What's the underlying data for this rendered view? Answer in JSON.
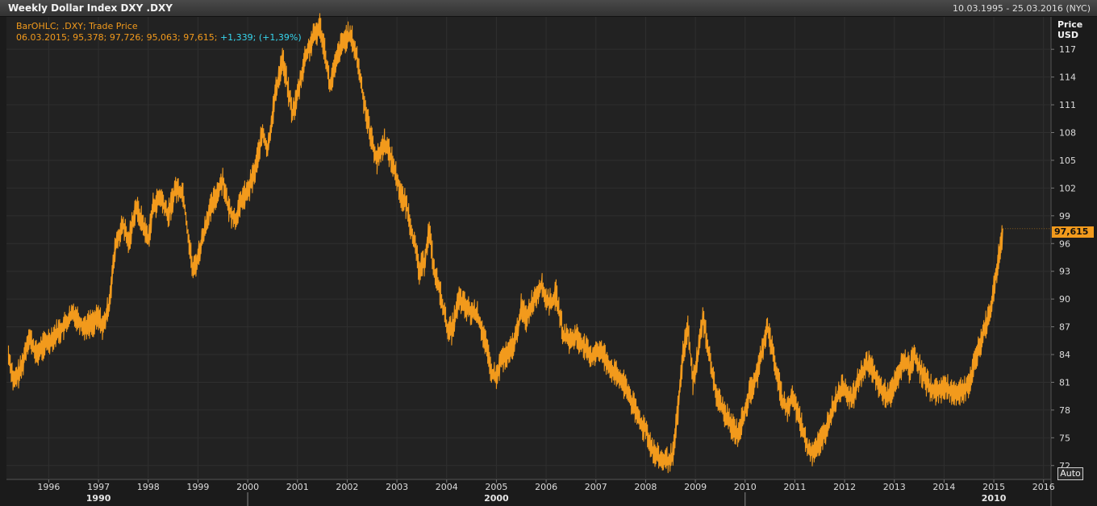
{
  "header": {
    "title": "Weekly Dollar Index DXY .DXY",
    "date_range": "10.03.1995 - 25.03.2016 (NYC)"
  },
  "legend": {
    "line1": "BarOHLC; .DXY; Trade Price",
    "line2_values": "06.03.2015; 95,378; 97,726; 95,063; 97,615;",
    "line2_change": "+1,339; (+1,39%)"
  },
  "price_axis": {
    "label_line1": "Price",
    "label_line2": "USD",
    "last_price": "97,615"
  },
  "auto_button": "Auto",
  "colors": {
    "series": "#f29a1c",
    "change": "#37d6ee",
    "background": "#222222",
    "grid": "#2f2f2f"
  },
  "chart_data": {
    "type": "line",
    "title": "Weekly Dollar Index DXY .DXY",
    "series": [
      {
        "name": ".DXY",
        "points": [
          [
            1995.19,
            84.0
          ],
          [
            1995.3,
            81.0
          ],
          [
            1995.45,
            82.5
          ],
          [
            1995.6,
            86.0
          ],
          [
            1995.75,
            84.0
          ],
          [
            1995.9,
            85.0
          ],
          [
            1996.1,
            86.0
          ],
          [
            1996.3,
            87.0
          ],
          [
            1996.5,
            88.5
          ],
          [
            1996.7,
            87.0
          ],
          [
            1996.9,
            87.5
          ],
          [
            1997.0,
            88.0
          ],
          [
            1997.1,
            87.0
          ],
          [
            1997.2,
            89.0
          ],
          [
            1997.35,
            96.0
          ],
          [
            1997.5,
            98.0
          ],
          [
            1997.6,
            96.0
          ],
          [
            1997.75,
            100.0
          ],
          [
            1997.9,
            98.0
          ],
          [
            1998.0,
            96.5
          ],
          [
            1998.1,
            100.0
          ],
          [
            1998.25,
            101.0
          ],
          [
            1998.4,
            99.0
          ],
          [
            1998.55,
            102.0
          ],
          [
            1998.7,
            101.5
          ],
          [
            1998.8,
            97.0
          ],
          [
            1998.9,
            93.0
          ],
          [
            1999.0,
            94.5
          ],
          [
            1999.2,
            99.0
          ],
          [
            1999.35,
            101.0
          ],
          [
            1999.5,
            103.0
          ],
          [
            1999.6,
            100.0
          ],
          [
            1999.75,
            98.5
          ],
          [
            1999.9,
            101.0
          ],
          [
            2000.0,
            101.5
          ],
          [
            2000.15,
            104.0
          ],
          [
            2000.3,
            108.0
          ],
          [
            2000.4,
            106.0
          ],
          [
            2000.55,
            112.0
          ],
          [
            2000.7,
            116.0
          ],
          [
            2000.8,
            113.0
          ],
          [
            2000.9,
            110.0
          ],
          [
            2001.0,
            112.0
          ],
          [
            2001.15,
            116.0
          ],
          [
            2001.3,
            118.0
          ],
          [
            2001.45,
            119.5
          ],
          [
            2001.55,
            117.0
          ],
          [
            2001.65,
            113.0
          ],
          [
            2001.75,
            115.0
          ],
          [
            2001.85,
            117.0
          ],
          [
            2002.0,
            118.5
          ],
          [
            2002.1,
            118.0
          ],
          [
            2002.2,
            116.0
          ],
          [
            2002.35,
            111.0
          ],
          [
            2002.5,
            107.0
          ],
          [
            2002.6,
            105.0
          ],
          [
            2002.75,
            107.0
          ],
          [
            2002.9,
            105.0
          ],
          [
            2003.0,
            103.0
          ],
          [
            2003.1,
            101.0
          ],
          [
            2003.2,
            100.0
          ],
          [
            2003.35,
            96.0
          ],
          [
            2003.45,
            93.0
          ],
          [
            2003.55,
            94.0
          ],
          [
            2003.65,
            97.5
          ],
          [
            2003.75,
            93.0
          ],
          [
            2003.9,
            90.0
          ],
          [
            2004.0,
            87.0
          ],
          [
            2004.1,
            86.5
          ],
          [
            2004.25,
            90.0
          ],
          [
            2004.4,
            89.0
          ],
          [
            2004.5,
            88.5
          ],
          [
            2004.6,
            88.5
          ],
          [
            2004.75,
            86.0
          ],
          [
            2004.9,
            82.0
          ],
          [
            2005.0,
            81.5
          ],
          [
            2005.1,
            83.5
          ],
          [
            2005.25,
            84.0
          ],
          [
            2005.4,
            86.0
          ],
          [
            2005.5,
            89.0
          ],
          [
            2005.6,
            88.0
          ],
          [
            2005.75,
            90.0
          ],
          [
            2005.9,
            91.5
          ],
          [
            2006.0,
            90.0
          ],
          [
            2006.1,
            89.5
          ],
          [
            2006.2,
            90.5
          ],
          [
            2006.35,
            86.0
          ],
          [
            2006.5,
            85.5
          ],
          [
            2006.6,
            86.0
          ],
          [
            2006.75,
            85.0
          ],
          [
            2006.9,
            83.5
          ],
          [
            2007.0,
            84.5
          ],
          [
            2007.15,
            84.0
          ],
          [
            2007.3,
            82.5
          ],
          [
            2007.45,
            81.5
          ],
          [
            2007.6,
            80.5
          ],
          [
            2007.75,
            78.5
          ],
          [
            2007.9,
            76.5
          ],
          [
            2008.0,
            76.0
          ],
          [
            2008.15,
            73.5
          ],
          [
            2008.3,
            72.5
          ],
          [
            2008.45,
            72.5
          ],
          [
            2008.55,
            73.0
          ],
          [
            2008.65,
            78.0
          ],
          [
            2008.75,
            84.0
          ],
          [
            2008.85,
            87.0
          ],
          [
            2008.95,
            81.0
          ],
          [
            2009.05,
            84.0
          ],
          [
            2009.15,
            88.0
          ],
          [
            2009.25,
            85.0
          ],
          [
            2009.4,
            80.0
          ],
          [
            2009.55,
            78.0
          ],
          [
            2009.7,
            76.5
          ],
          [
            2009.85,
            75.5
          ],
          [
            2009.95,
            77.0
          ],
          [
            2010.1,
            80.0
          ],
          [
            2010.25,
            82.0
          ],
          [
            2010.4,
            86.0
          ],
          [
            2010.45,
            87.0
          ],
          [
            2010.6,
            83.0
          ],
          [
            2010.75,
            79.0
          ],
          [
            2010.85,
            78.0
          ],
          [
            2010.95,
            79.5
          ],
          [
            2011.1,
            77.0
          ],
          [
            2011.25,
            74.0
          ],
          [
            2011.35,
            73.5
          ],
          [
            2011.5,
            74.5
          ],
          [
            2011.6,
            75.5
          ],
          [
            2011.75,
            78.0
          ],
          [
            2011.9,
            80.0
          ],
          [
            2012.0,
            80.5
          ],
          [
            2012.15,
            79.0
          ],
          [
            2012.3,
            81.5
          ],
          [
            2012.45,
            83.0
          ],
          [
            2012.55,
            82.5
          ],
          [
            2012.7,
            80.5
          ],
          [
            2012.85,
            79.5
          ],
          [
            2012.95,
            80.0
          ],
          [
            2013.1,
            82.0
          ],
          [
            2013.2,
            83.5
          ],
          [
            2013.3,
            82.5
          ],
          [
            2013.4,
            84.0
          ],
          [
            2013.55,
            82.0
          ],
          [
            2013.7,
            80.5
          ],
          [
            2013.85,
            80.0
          ],
          [
            2014.0,
            80.5
          ],
          [
            2014.15,
            80.0
          ],
          [
            2014.3,
            80.0
          ],
          [
            2014.45,
            80.5
          ],
          [
            2014.55,
            81.5
          ],
          [
            2014.65,
            84.0
          ],
          [
            2014.8,
            86.5
          ],
          [
            2014.92,
            88.5
          ],
          [
            2015.0,
            91.0
          ],
          [
            2015.08,
            94.0
          ],
          [
            2015.13,
            95.5
          ],
          [
            2015.18,
            97.6
          ]
        ]
      }
    ],
    "x_ticks": [
      "1996",
      "1997",
      "1998",
      "1999",
      "2000",
      "2001",
      "2002",
      "2003",
      "2004",
      "2005",
      "2006",
      "2007",
      "2008",
      "2009",
      "2010",
      "2011",
      "2012",
      "2013",
      "2014",
      "2015",
      "2016"
    ],
    "x_tick_values": [
      1996,
      1997,
      1998,
      1999,
      2000,
      2001,
      2002,
      2003,
      2004,
      2005,
      2006,
      2007,
      2008,
      2009,
      2010,
      2011,
      2012,
      2013,
      2014,
      2015,
      2016
    ],
    "decade_labels": [
      "1990",
      "2000",
      "2010"
    ],
    "decade_values": [
      1990,
      2000,
      2010
    ],
    "y_ticks": [
      72,
      75,
      78,
      81,
      84,
      87,
      90,
      93,
      96,
      99,
      102,
      105,
      108,
      111,
      114,
      117
    ],
    "xlim": [
      1995.15,
      2016.15
    ],
    "ylim": [
      70.5,
      120.5
    ],
    "last_value": 97.615,
    "grid": true,
    "xlabel": "",
    "ylabel": "Price USD"
  }
}
